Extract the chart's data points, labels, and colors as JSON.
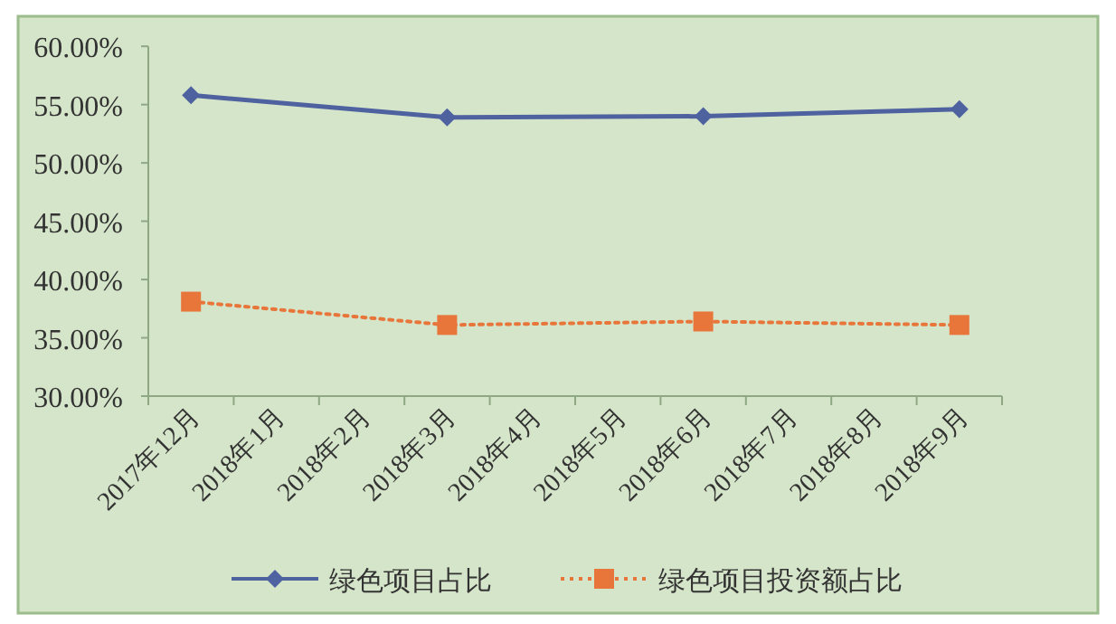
{
  "chart_data": {
    "type": "line",
    "categories": [
      "2017年12月",
      "2018年1月",
      "2018年2月",
      "2018年3月",
      "2018年4月",
      "2018年5月",
      "2018年6月",
      "2018年7月",
      "2018年8月",
      "2018年9月"
    ],
    "series": [
      {
        "name": "绿色项目占比",
        "color": "#4f62a0",
        "marker": "diamond",
        "line_style": "solid",
        "values": [
          55.8,
          null,
          null,
          53.9,
          null,
          null,
          54.0,
          null,
          null,
          54.6
        ]
      },
      {
        "name": "绿色项目投资额占比",
        "color": "#e8753a",
        "marker": "square",
        "line_style": "dotted",
        "values": [
          38.1,
          null,
          null,
          36.1,
          null,
          null,
          36.4,
          null,
          null,
          36.1
        ]
      }
    ],
    "ylim": [
      30,
      60
    ],
    "yticks": [
      {
        "value": 30,
        "label": "30.00%"
      },
      {
        "value": 35,
        "label": "35.00%"
      },
      {
        "value": 40,
        "label": "40.00%"
      },
      {
        "value": 45,
        "label": "45.00%"
      },
      {
        "value": 50,
        "label": "50.00%"
      },
      {
        "value": 55,
        "label": "55.00%"
      },
      {
        "value": 60,
        "label": "60.00%"
      }
    ],
    "grid": false,
    "legend": "bottom"
  }
}
